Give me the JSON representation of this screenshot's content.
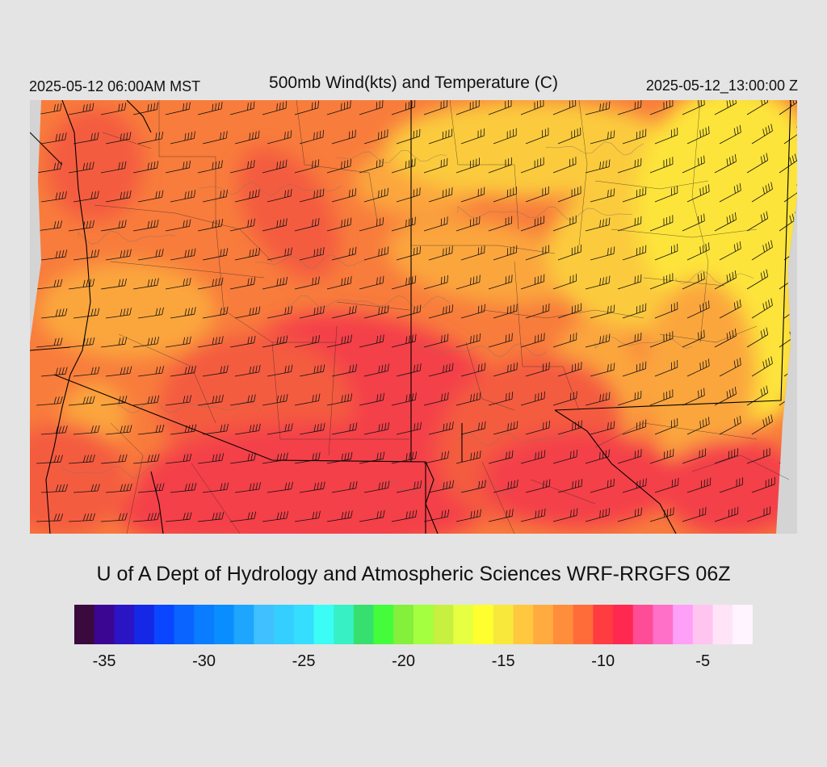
{
  "header": {
    "init_time": "2025-05-12 06:00AM MST",
    "title": "500mb Wind(kts) and Temperature (C)",
    "valid_time": "2025-05-12_13:00:00 Z"
  },
  "credit": "U of A Dept of Hydrology and Atmospheric Sciences WRF-RRGFS 06Z",
  "colorbar": {
    "colors": [
      "#3a0a3f",
      "#3b0691",
      "#2a14c4",
      "#1428e6",
      "#0a46ff",
      "#0a64ff",
      "#0a7cff",
      "#0a8eff",
      "#1ea6ff",
      "#40c0ff",
      "#35cfff",
      "#35ddff",
      "#3cfcf6",
      "#37f0c4",
      "#37e06e",
      "#45fc3a",
      "#84f03c",
      "#a4ff40",
      "#c7f040",
      "#e6ff40",
      "#ffff30",
      "#f8e83c",
      "#ffc83e",
      "#ffab40",
      "#ff8e3c",
      "#ff6c3a",
      "#ff3c40",
      "#ff2850",
      "#ff4c96",
      "#ff70c8",
      "#ffa0f8",
      "#ffc4f0",
      "#ffe4f8",
      "#fff4ff"
    ],
    "ticks": [
      "-35",
      "-30",
      "-25",
      "-20",
      "-15",
      "-10",
      "-5"
    ],
    "tick_values": [
      -35,
      -30,
      -25,
      -20,
      -15,
      -10,
      -5
    ],
    "min": -36.5,
    "step": 1
  },
  "map_colors": {
    "outside": "#d4d4d4",
    "red": "#f4404a",
    "redorange": "#f45c40",
    "orange": "#f87c3c",
    "lightorange": "#fba63e",
    "yelloworange": "#fbcb3e",
    "yellow": "#fde43a"
  }
}
